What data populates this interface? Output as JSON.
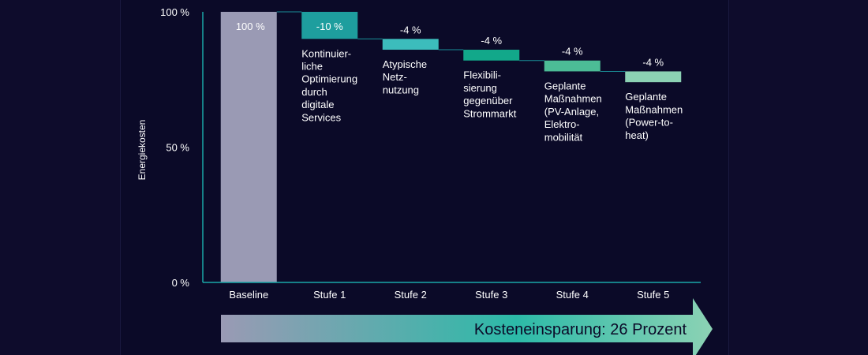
{
  "chart_data": {
    "type": "bar",
    "subtype": "waterfall",
    "title": "",
    "xlabel": "",
    "ylabel": "Energiekosten",
    "ylim": [
      0,
      100
    ],
    "yticks": [
      {
        "value": 0,
        "label": "0 %"
      },
      {
        "value": 50,
        "label": "50 %"
      },
      {
        "value": 100,
        "label": "100 %"
      }
    ],
    "grid": false,
    "categories": [
      "Baseline",
      "Stufe 1",
      "Stufe 2",
      "Stufe 3",
      "Stufe 4",
      "Stufe 5"
    ],
    "steps": [
      {
        "category": "Baseline",
        "start": 0,
        "end": 100,
        "value_label": "100 %",
        "description": [],
        "color": "#9a9ab4"
      },
      {
        "category": "Stufe 1",
        "start": 100,
        "end": 90,
        "value_label": "-10 %",
        "description": [
          "Kontinuier-",
          "liche",
          "Optimierung",
          "durch",
          "digitale",
          "Services"
        ],
        "color": "#1e9e9e"
      },
      {
        "category": "Stufe 2",
        "start": 90,
        "end": 86,
        "value_label": "-4 %",
        "description": [
          "Atypische",
          "Netz-",
          "nutzung"
        ],
        "color": "#3cbcbc"
      },
      {
        "category": "Stufe 3",
        "start": 86,
        "end": 82,
        "value_label": "-4 %",
        "description": [
          "Flexibili-",
          "sierung",
          "gegenüber",
          "Strommarkt"
        ],
        "color": "#12a88a"
      },
      {
        "category": "Stufe 4",
        "start": 82,
        "end": 78,
        "value_label": "-4 %",
        "description": [
          "Geplante",
          "Maßnahmen",
          "(PV-Anlage,",
          "Elektro-",
          "mobilität"
        ],
        "color": "#4cbc96"
      },
      {
        "category": "Stufe 5",
        "start": 78,
        "end": 74,
        "value_label": "-4 %",
        "description": [
          "Geplante",
          "Maßnahmen",
          "(Power-to-",
          "heat)"
        ],
        "color": "#8cd2b4"
      }
    ],
    "savings_arrow": {
      "label": "Kosteneinsparung: 26 Prozent",
      "colors": [
        "#9a9ab4",
        "#2cbaa8",
        "#8cd2b4"
      ]
    },
    "colors": {
      "axis": "#1aa8a8",
      "connector": "#1a8f98",
      "text": "#ffffff",
      "arrow_text": "#0b0a28"
    }
  }
}
